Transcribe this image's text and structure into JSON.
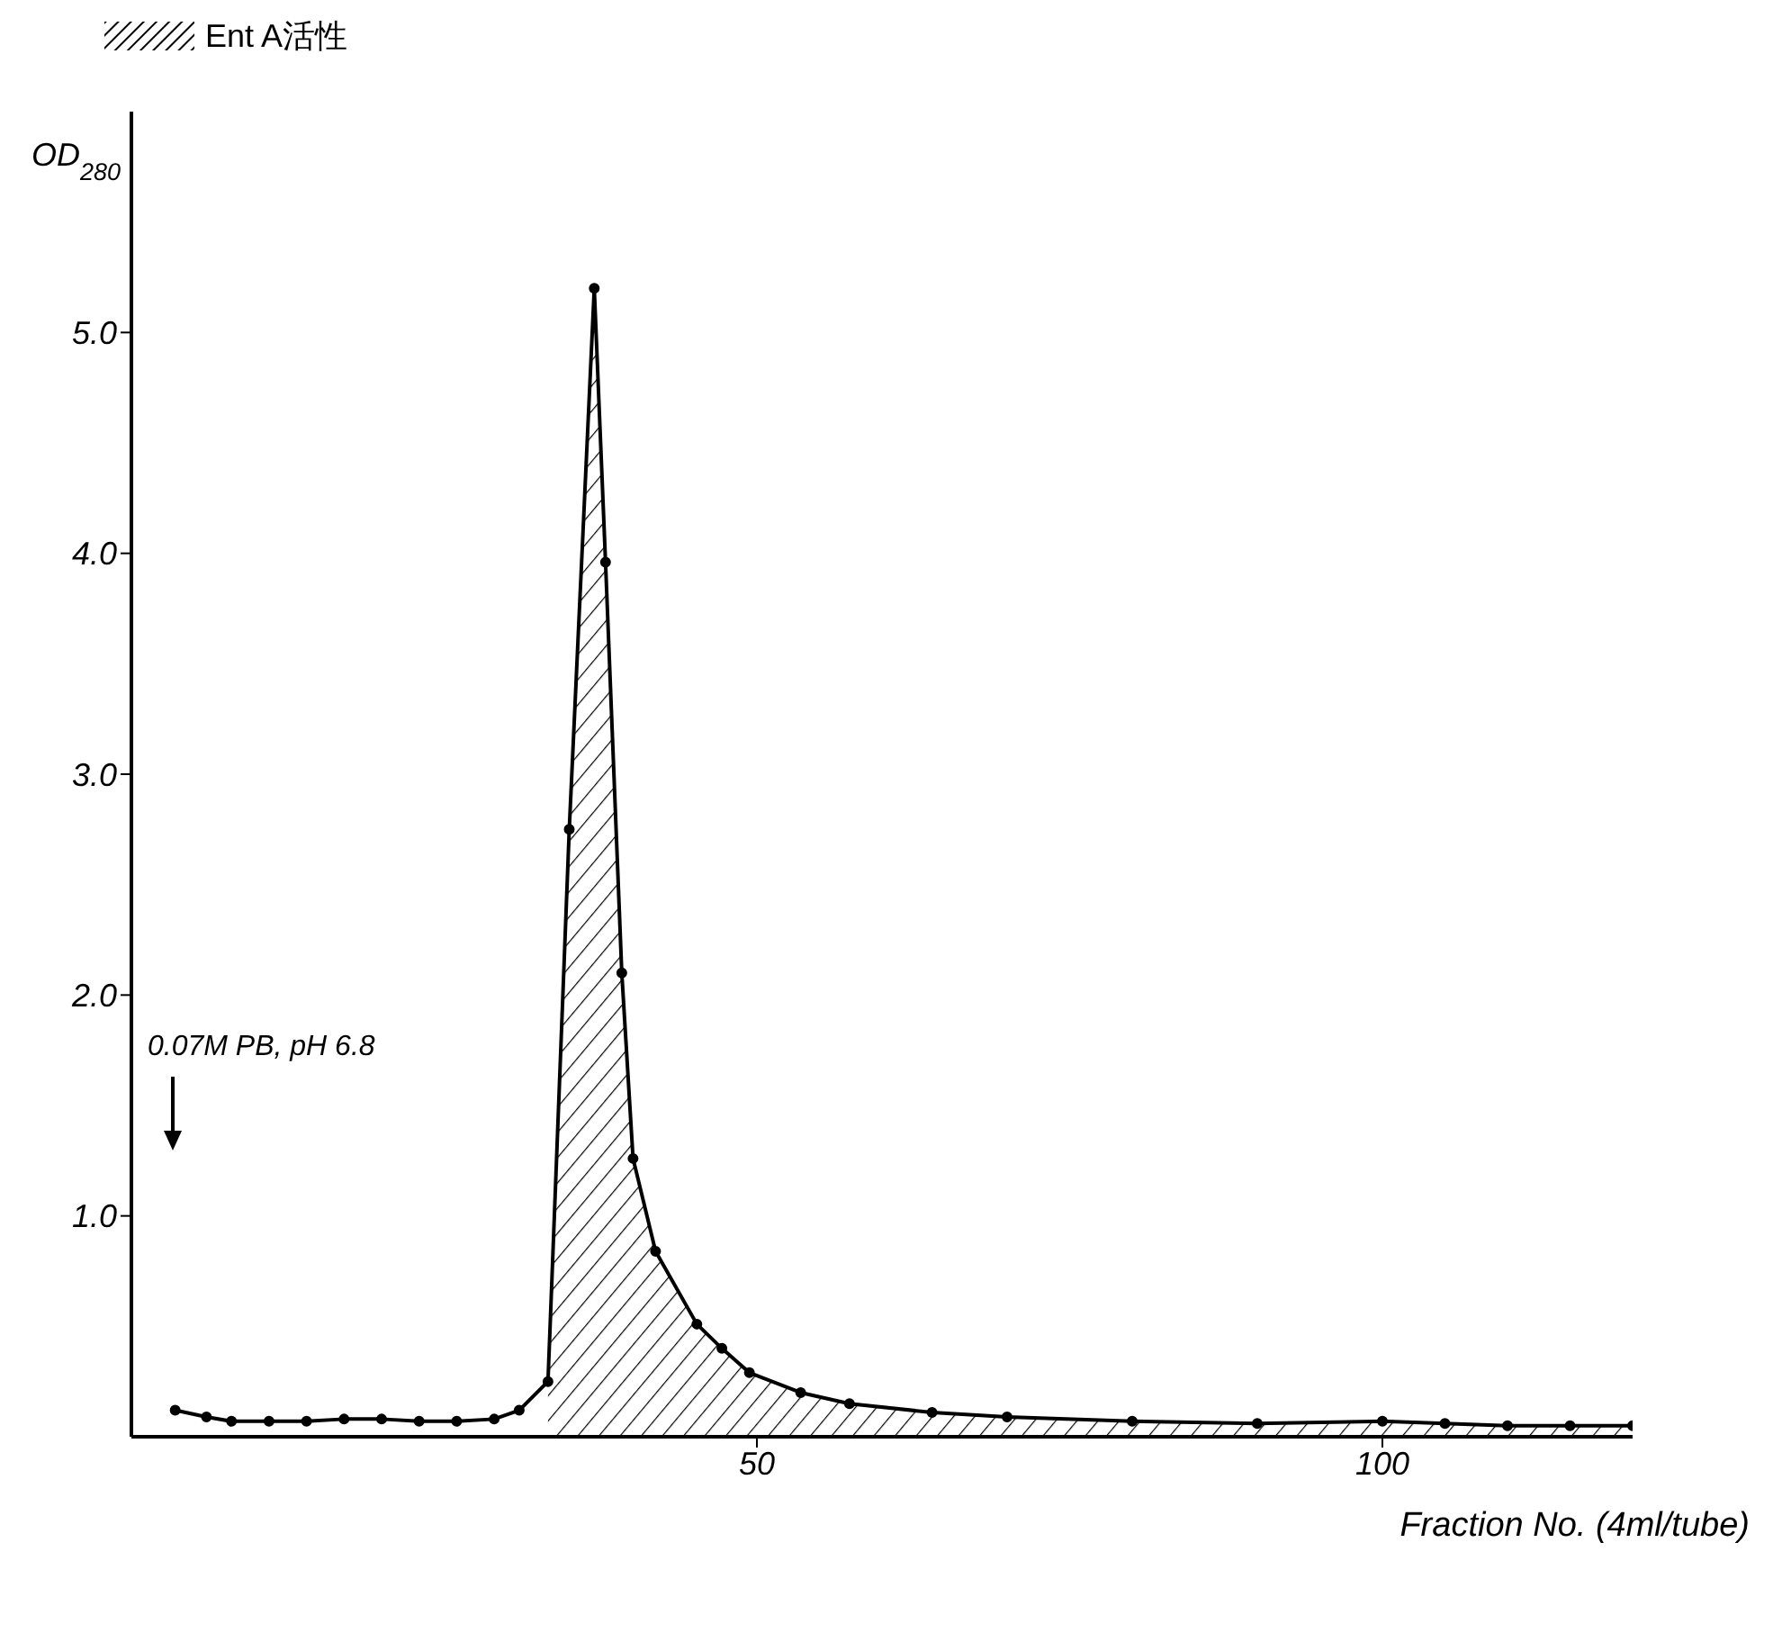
{
  "chart_data": {
    "type": "line",
    "xlabel": "Fraction No. (4ml/tube)",
    "ylabel": "OD$_{280}$",
    "xlim": [
      0,
      120
    ],
    "xticks": [
      50,
      100
    ],
    "ylim": [
      0,
      6
    ],
    "yticks": [
      {
        "value": 1,
        "label": "1.0"
      },
      {
        "value": 2,
        "label": "2.0"
      },
      {
        "value": 3,
        "label": "3.0"
      },
      {
        "value": 4,
        "label": "4.0"
      },
      {
        "value": 5,
        "label": "5.0"
      }
    ],
    "grid": false,
    "legend": "top left",
    "line_style": "solid",
    "annotations": [
      "0.07M PB, pH 6.8"
    ],
    "series": [
      {
        "marker": "circle",
        "color": "#000000",
        "x": [
          3.5,
          6,
          8,
          11,
          14,
          17,
          20,
          23,
          26,
          29,
          31,
          33.3,
          35,
          37,
          37.9,
          39.2,
          40.1,
          41.9,
          45.2,
          47.2,
          49.4,
          53.5,
          57.4,
          64,
          70,
          80,
          90,
          100,
          105,
          110,
          115,
          120
        ],
        "values": [
          0.12,
          0.09,
          0.07,
          0.07,
          0.07,
          0.08,
          0.08,
          0.07,
          0.07,
          0.08,
          0.12,
          0.25,
          2.75,
          5.2,
          3.96,
          2.1,
          1.26,
          0.84,
          0.51,
          0.4,
          0.29,
          0.2,
          0.15,
          0.11,
          0.09,
          0.07,
          0.06,
          0.07,
          0.06,
          0.05,
          0.05,
          0.05
        ]
      },
      {
        "type": "area",
        "name": "Ent A活性",
        "color": "#000000",
        "x": [
          33.3,
          35,
          37,
          37.9,
          39.2,
          40.1,
          41.9,
          45.2,
          47.2,
          49.4,
          53.5,
          57.4,
          64,
          70,
          80,
          90,
          100,
          105,
          110,
          115,
          120
        ],
        "values": [
          0.25,
          2.75,
          5.2,
          3.96,
          2.1,
          1.26,
          0.84,
          0.51,
          0.4,
          0.29,
          0.2,
          0.15,
          0.11,
          0.09,
          0.07,
          0.06,
          0.07,
          0.06,
          0.05,
          0.05,
          0.05
        ]
      }
    ]
  }
}
